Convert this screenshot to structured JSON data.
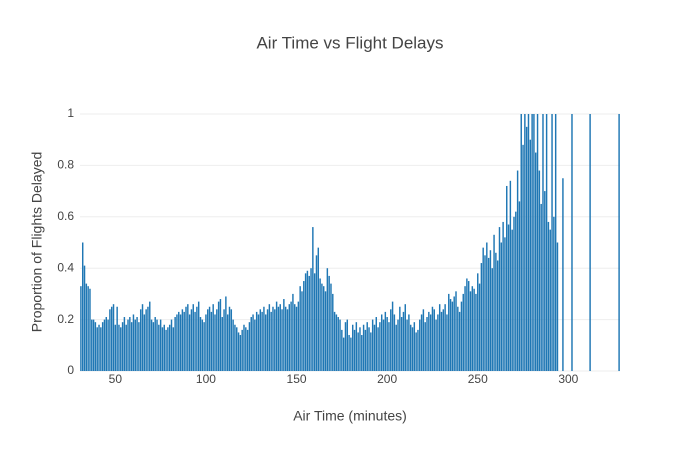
{
  "chart_data": {
    "type": "bar",
    "title": "Air Time vs Flight Delays",
    "xlabel": "Air Time (minutes)",
    "ylabel": "Proportion of Flights Delayed",
    "color": "#1f77b4",
    "x": [
      31,
      32,
      33,
      34,
      35,
      36,
      37,
      38,
      39,
      40,
      41,
      42,
      43,
      44,
      45,
      46,
      47,
      48,
      49,
      50,
      51,
      52,
      53,
      54,
      55,
      56,
      57,
      58,
      59,
      60,
      61,
      62,
      63,
      64,
      65,
      66,
      67,
      68,
      69,
      70,
      71,
      72,
      73,
      74,
      75,
      76,
      77,
      78,
      79,
      80,
      81,
      82,
      83,
      84,
      85,
      86,
      87,
      88,
      89,
      90,
      91,
      92,
      93,
      94,
      95,
      96,
      97,
      98,
      99,
      100,
      101,
      102,
      103,
      104,
      105,
      106,
      107,
      108,
      109,
      110,
      111,
      112,
      113,
      114,
      115,
      116,
      117,
      118,
      119,
      120,
      121,
      122,
      123,
      124,
      125,
      126,
      127,
      128,
      129,
      130,
      131,
      132,
      133,
      134,
      135,
      136,
      137,
      138,
      139,
      140,
      141,
      142,
      143,
      144,
      145,
      146,
      147,
      148,
      149,
      150,
      151,
      152,
      153,
      154,
      155,
      156,
      157,
      158,
      159,
      160,
      161,
      162,
      163,
      164,
      165,
      166,
      167,
      168,
      169,
      170,
      171,
      172,
      173,
      174,
      175,
      176,
      177,
      178,
      179,
      180,
      181,
      182,
      183,
      184,
      185,
      186,
      187,
      188,
      189,
      190,
      191,
      192,
      193,
      194,
      195,
      196,
      197,
      198,
      199,
      200,
      201,
      202,
      203,
      204,
      205,
      206,
      207,
      208,
      209,
      210,
      211,
      212,
      213,
      214,
      215,
      216,
      217,
      218,
      219,
      220,
      221,
      222,
      223,
      224,
      225,
      226,
      227,
      228,
      229,
      230,
      231,
      232,
      233,
      234,
      235,
      236,
      237,
      238,
      239,
      240,
      241,
      242,
      243,
      244,
      245,
      246,
      247,
      248,
      249,
      250,
      251,
      252,
      253,
      254,
      255,
      256,
      257,
      258,
      259,
      260,
      261,
      262,
      263,
      264,
      265,
      266,
      267,
      268,
      269,
      270,
      271,
      272,
      273,
      274,
      275,
      276,
      277,
      278,
      279,
      280,
      281,
      282,
      283,
      284,
      285,
      286,
      287,
      288,
      289,
      290,
      291,
      292,
      293,
      294,
      297,
      302,
      312,
      328
    ],
    "values": [
      0.33,
      0.5,
      0.41,
      0.34,
      0.33,
      0.32,
      0.2,
      0.2,
      0.19,
      0.17,
      0.18,
      0.17,
      0.19,
      0.2,
      0.21,
      0.2,
      0.24,
      0.25,
      0.26,
      0.18,
      0.25,
      0.18,
      0.17,
      0.19,
      0.21,
      0.18,
      0.2,
      0.21,
      0.19,
      0.22,
      0.2,
      0.21,
      0.19,
      0.24,
      0.26,
      0.22,
      0.24,
      0.25,
      0.27,
      0.2,
      0.19,
      0.21,
      0.2,
      0.18,
      0.2,
      0.17,
      0.18,
      0.16,
      0.17,
      0.18,
      0.2,
      0.17,
      0.21,
      0.22,
      0.23,
      0.22,
      0.24,
      0.23,
      0.25,
      0.26,
      0.22,
      0.24,
      0.26,
      0.23,
      0.25,
      0.27,
      0.21,
      0.2,
      0.19,
      0.22,
      0.24,
      0.25,
      0.23,
      0.26,
      0.22,
      0.24,
      0.27,
      0.28,
      0.21,
      0.24,
      0.29,
      0.22,
      0.25,
      0.24,
      0.2,
      0.18,
      0.17,
      0.15,
      0.14,
      0.16,
      0.18,
      0.17,
      0.16,
      0.19,
      0.21,
      0.22,
      0.2,
      0.23,
      0.22,
      0.24,
      0.23,
      0.25,
      0.22,
      0.24,
      0.26,
      0.23,
      0.25,
      0.24,
      0.27,
      0.25,
      0.26,
      0.24,
      0.28,
      0.25,
      0.24,
      0.26,
      0.27,
      0.3,
      0.26,
      0.25,
      0.27,
      0.33,
      0.31,
      0.35,
      0.38,
      0.39,
      0.37,
      0.4,
      0.56,
      0.38,
      0.45,
      0.48,
      0.36,
      0.34,
      0.33,
      0.31,
      0.4,
      0.37,
      0.34,
      0.3,
      0.23,
      0.22,
      0.21,
      0.2,
      0.16,
      0.13,
      0.19,
      0.2,
      0.14,
      0.13,
      0.18,
      0.16,
      0.19,
      0.15,
      0.17,
      0.14,
      0.18,
      0.16,
      0.19,
      0.17,
      0.15,
      0.2,
      0.18,
      0.21,
      0.17,
      0.19,
      0.22,
      0.2,
      0.23,
      0.21,
      0.19,
      0.24,
      0.27,
      0.22,
      0.18,
      0.2,
      0.25,
      0.21,
      0.23,
      0.26,
      0.2,
      0.22,
      0.18,
      0.17,
      0.19,
      0.15,
      0.16,
      0.2,
      0.22,
      0.24,
      0.19,
      0.21,
      0.23,
      0.22,
      0.25,
      0.24,
      0.2,
      0.22,
      0.26,
      0.23,
      0.24,
      0.26,
      0.22,
      0.3,
      0.28,
      0.27,
      0.29,
      0.31,
      0.25,
      0.23,
      0.27,
      0.3,
      0.33,
      0.36,
      0.35,
      0.31,
      0.33,
      0.32,
      0.3,
      0.38,
      0.34,
      0.42,
      0.48,
      0.45,
      0.5,
      0.44,
      0.47,
      0.4,
      0.53,
      0.46,
      0.43,
      0.56,
      0.5,
      0.58,
      0.52,
      0.72,
      0.57,
      0.74,
      0.55,
      0.6,
      0.62,
      0.78,
      0.66,
      1,
      0.88,
      1,
      0.95,
      1,
      0.9,
      1,
      1,
      0.85,
      1,
      0.78,
      0.65,
      1,
      0.7,
      1,
      0.58,
      0.55,
      1,
      0.6,
      1,
      0.5,
      0.75,
      1,
      1,
      1
    ],
    "xlim": [
      30.5,
      328.5
    ],
    "xticks": [
      50,
      100,
      150,
      200,
      250,
      300
    ],
    "ylim": [
      0,
      1
    ],
    "yticks": [
      0,
      0.2,
      0.4,
      0.6,
      0.8,
      1
    ],
    "grid": true
  }
}
